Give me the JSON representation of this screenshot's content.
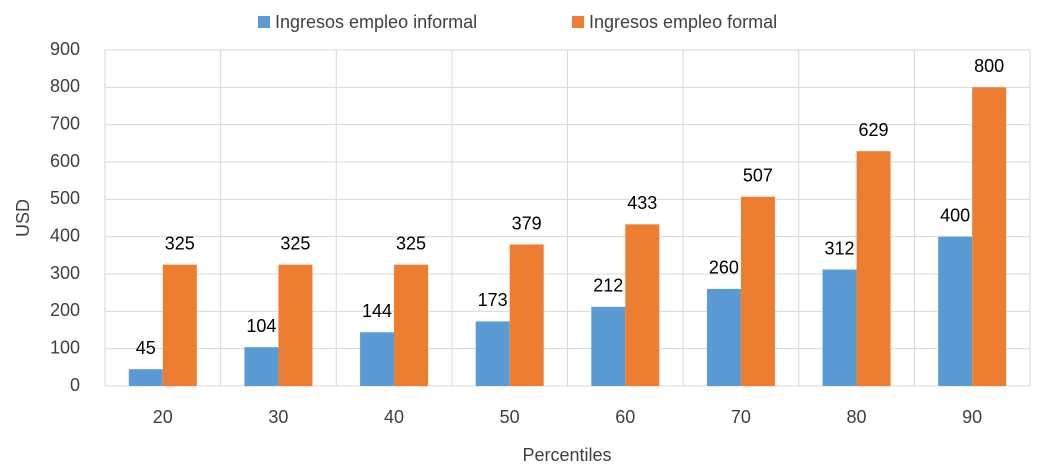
{
  "chart_data": {
    "type": "bar",
    "x_label": "Percentiles",
    "y_label": "USD",
    "categories": [
      "20",
      "30",
      "40",
      "50",
      "60",
      "70",
      "80",
      "90"
    ],
    "series": [
      {
        "name": "Ingresos empleo informal",
        "color": "#5b9bd5",
        "values": [
          45,
          104,
          144,
          173,
          212,
          260,
          312,
          400
        ]
      },
      {
        "name": "Ingresos empleo formal",
        "color": "#ed7d31",
        "values": [
          325,
          325,
          325,
          379,
          433,
          507,
          629,
          800
        ]
      }
    ],
    "ylim": [
      0,
      900
    ],
    "yticks": [
      0,
      100,
      200,
      300,
      400,
      500,
      600,
      700,
      800,
      900
    ],
    "grid": true,
    "legend": "top"
  }
}
